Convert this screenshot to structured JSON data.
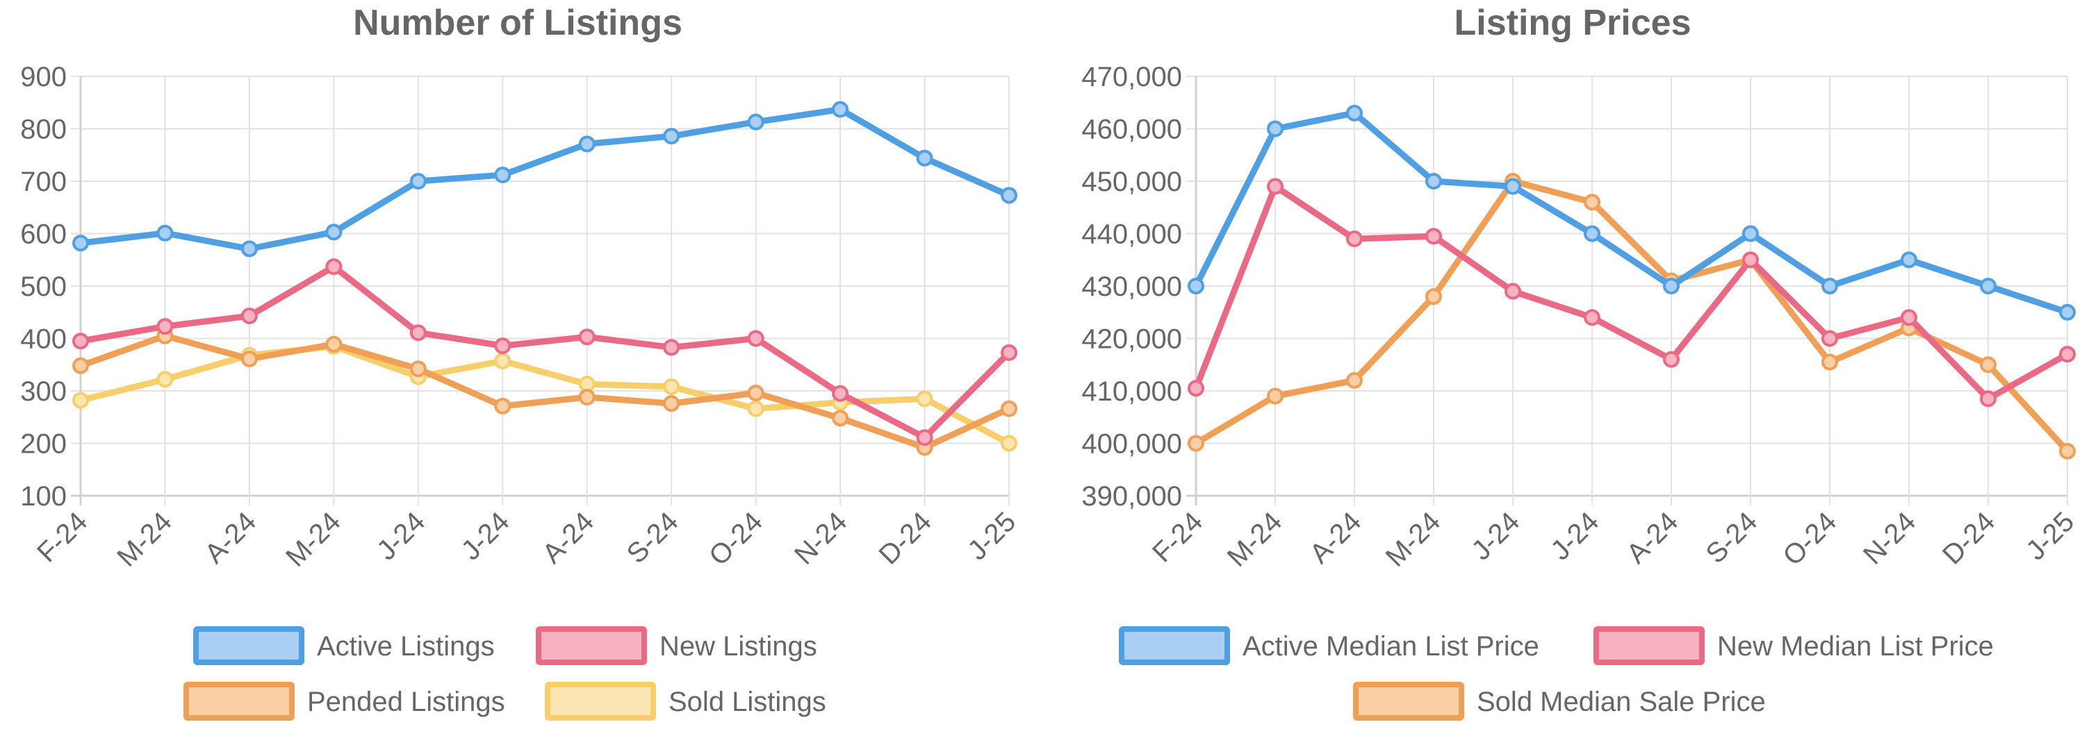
{
  "chart_data": [
    {
      "type": "line",
      "title": "Number of Listings",
      "categories": [
        "F-24",
        "M-24",
        "A-24",
        "M-24",
        "J-24",
        "J-24",
        "A-24",
        "S-24",
        "O-24",
        "N-24",
        "D-24",
        "J-25"
      ],
      "ylim": [
        100,
        900
      ],
      "yticks": [
        100,
        200,
        300,
        400,
        500,
        600,
        700,
        800,
        900
      ],
      "ytick_labels": [
        "100",
        "200",
        "300",
        "400",
        "500",
        "600",
        "700",
        "800",
        "900"
      ],
      "grid": true,
      "legend_position": "bottom",
      "series": [
        {
          "name": "Active Listings",
          "color": "#4f9fe3",
          "fill": "#a9cff5",
          "values": [
            582,
            601,
            571,
            603,
            700,
            712,
            771,
            786,
            813,
            837,
            744,
            673
          ]
        },
        {
          "name": "New Listings",
          "color": "#ea6a85",
          "fill": "#f7b3c2",
          "values": [
            395,
            423,
            443,
            537,
            411,
            386,
            403,
            383,
            400,
            295,
            211,
            373
          ]
        },
        {
          "name": "Pended Listings",
          "color": "#f0a056",
          "fill": "#f9cfa5",
          "values": [
            348,
            405,
            361,
            389,
            342,
            271,
            288,
            276,
            296,
            248,
            192,
            266
          ]
        },
        {
          "name": "Sold Listings",
          "color": "#f6cf6b",
          "fill": "#fbe6b1",
          "values": [
            282,
            322,
            368,
            385,
            327,
            357,
            313,
            308,
            266,
            278,
            285,
            200
          ]
        }
      ]
    },
    {
      "type": "line",
      "title": "Listing Prices",
      "categories": [
        "F-24",
        "M-24",
        "A-24",
        "M-24",
        "J-24",
        "J-24",
        "A-24",
        "S-24",
        "O-24",
        "N-24",
        "D-24",
        "J-25"
      ],
      "ylim": [
        390000,
        470000
      ],
      "yticks": [
        390000,
        400000,
        410000,
        420000,
        430000,
        440000,
        450000,
        460000,
        470000
      ],
      "ytick_labels": [
        "390,000",
        "400,000",
        "410,000",
        "420,000",
        "430,000",
        "440,000",
        "450,000",
        "460,000",
        "470,000"
      ],
      "grid": true,
      "legend_position": "bottom",
      "series": [
        {
          "name": "Active Median List Price",
          "color": "#4f9fe3",
          "fill": "#a9cff5",
          "values": [
            430000,
            460000,
            463000,
            450000,
            449000,
            440000,
            430000,
            440000,
            430000,
            435000,
            430000,
            425000
          ]
        },
        {
          "name": "New Median List Price",
          "color": "#ea6a85",
          "fill": "#f7b3c2",
          "values": [
            410500,
            449000,
            439000,
            439500,
            429000,
            424000,
            416000,
            435000,
            420000,
            424000,
            408500,
            417000
          ]
        },
        {
          "name": "Sold Median Sale Price",
          "color": "#f0a056",
          "fill": "#f9cfa5",
          "values": [
            400000,
            409000,
            412000,
            428000,
            450000,
            446000,
            431000,
            435000,
            415500,
            422000,
            415000,
            398500
          ]
        }
      ]
    }
  ]
}
